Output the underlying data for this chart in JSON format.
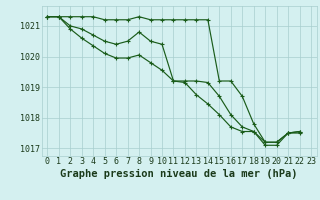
{
  "title": "Graphe pression niveau de la mer (hPa)",
  "x_hours": [
    0,
    1,
    2,
    3,
    4,
    5,
    6,
    7,
    8,
    9,
    10,
    11,
    12,
    13,
    14,
    15,
    16,
    17,
    18,
    19,
    20,
    21,
    22,
    23
  ],
  "line1": [
    1021.3,
    1021.3,
    1021.3,
    1021.3,
    1021.3,
    1021.2,
    1021.2,
    1021.2,
    1021.3,
    1021.2,
    1021.2,
    1021.2,
    1021.2,
    1021.2,
    1021.2,
    1019.2,
    1019.2,
    1018.7,
    1017.8,
    1017.2,
    1017.2,
    1017.5,
    1017.5,
    null
  ],
  "line2": [
    1021.3,
    1021.3,
    1021.0,
    1020.9,
    1020.7,
    1020.5,
    1020.4,
    1020.5,
    1020.8,
    1020.5,
    1020.4,
    1019.2,
    1019.2,
    1019.2,
    1019.15,
    1018.7,
    1018.1,
    1017.7,
    1017.55,
    1017.2,
    1017.2,
    1017.5,
    1017.55,
    null
  ],
  "line3": [
    1021.3,
    1021.3,
    1020.9,
    1020.6,
    1020.35,
    1020.1,
    1019.95,
    1019.95,
    1020.05,
    1019.8,
    1019.55,
    1019.2,
    1019.15,
    1018.75,
    1018.45,
    1018.1,
    1017.7,
    1017.55,
    1017.55,
    1017.1,
    1017.1,
    1017.5,
    1017.55,
    null
  ],
  "line_color": "#1a5c1a",
  "background_color": "#d4f0f0",
  "grid_color": "#a8cece",
  "ylim": [
    1016.75,
    1021.65
  ],
  "yticks": [
    1017,
    1018,
    1019,
    1020,
    1021
  ],
  "title_color": "#1a3a1a",
  "title_fontsize": 7.5,
  "tick_fontsize": 6.0
}
